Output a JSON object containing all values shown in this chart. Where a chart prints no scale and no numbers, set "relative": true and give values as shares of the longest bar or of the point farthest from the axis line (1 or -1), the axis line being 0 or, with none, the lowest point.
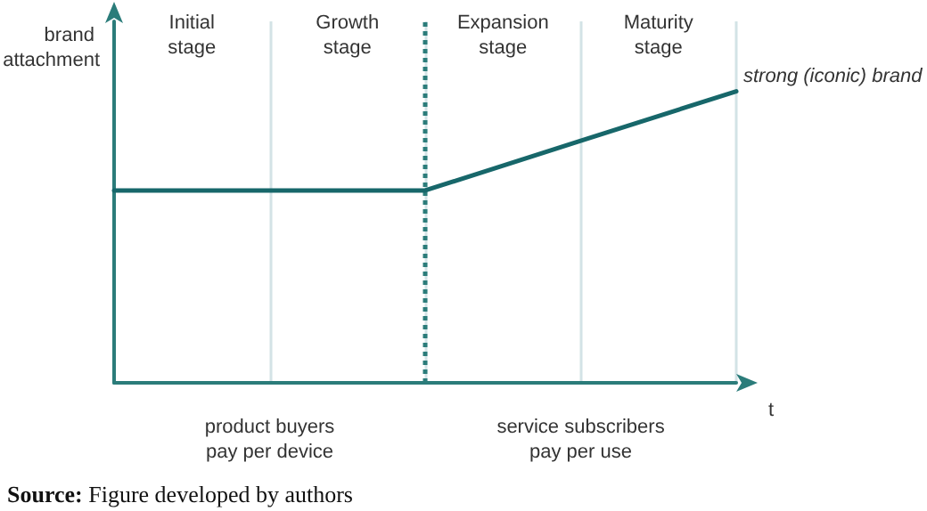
{
  "chart_data": {
    "type": "line",
    "relative": true,
    "xlabel": "t",
    "ylabel": "brand attachment",
    "categories": [
      null,
      null,
      null,
      null,
      null
    ],
    "grid": "x",
    "marker": "none",
    "line_style": "solid",
    "series": [
      {
        "color": "#17676a",
        "values": [
          0.66,
          0.66,
          0.66,
          0.83,
          1
        ]
      }
    ],
    "annotations": [
      "Initial\nstage",
      "Growth\nstage",
      "Expansion\nstage",
      "Maturity\nstage",
      "strong (iconic) brand",
      "product buyers\npay per device",
      "service subscribers\npay per use",
      "Source: Figure developed by authors"
    ]
  }
}
